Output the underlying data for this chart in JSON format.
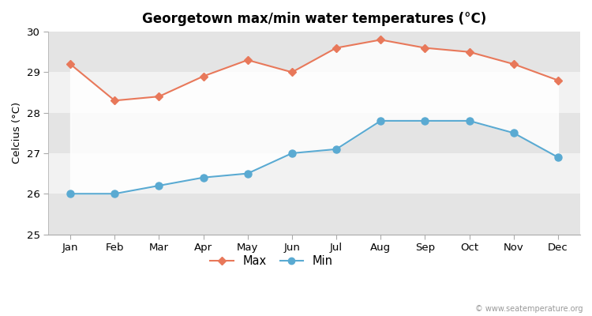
{
  "title": "Georgetown max/min water temperatures (°C)",
  "ylabel": "Celcius (°C)",
  "months": [
    "Jan",
    "Feb",
    "Mar",
    "Apr",
    "May",
    "Jun",
    "Jul",
    "Aug",
    "Sep",
    "Oct",
    "Nov",
    "Dec"
  ],
  "max_temps": [
    29.2,
    28.3,
    28.4,
    28.9,
    29.3,
    29.0,
    29.6,
    29.8,
    29.6,
    29.5,
    29.2,
    28.8
  ],
  "min_temps": [
    26.0,
    26.0,
    26.2,
    26.4,
    26.5,
    27.0,
    27.1,
    27.8,
    27.8,
    27.8,
    27.5,
    26.9
  ],
  "max_color": "#e8785a",
  "min_color": "#5aaad2",
  "fig_bg_color": "#ffffff",
  "plot_bg_color": "#ffffff",
  "band_light": "#f2f2f2",
  "band_dark": "#e4e4e4",
  "ylim": [
    25,
    30
  ],
  "yticks": [
    25,
    26,
    27,
    28,
    29,
    30
  ],
  "watermark": "© www.seatemperature.org",
  "legend_max": "Max",
  "legend_min": "Min"
}
